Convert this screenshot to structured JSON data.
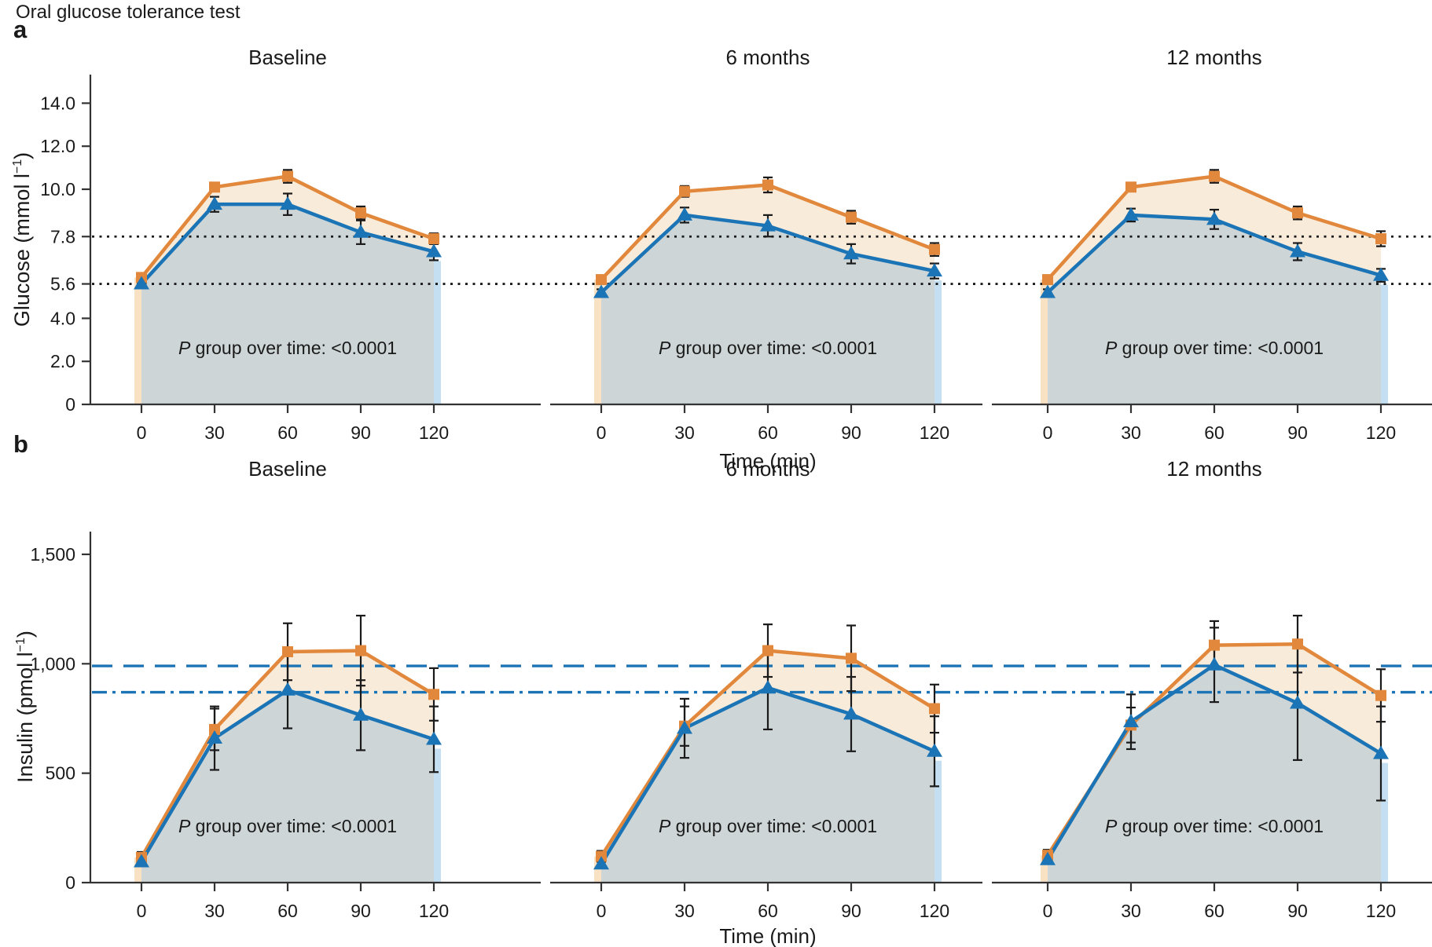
{
  "figure": {
    "title": "Oral glucose tolerance test",
    "row_letters": {
      "a": "a",
      "b": "b"
    },
    "colors": {
      "orange": "#E1883C",
      "blue": "#1B74B5",
      "band": "#F9EBDA",
      "gray": "#CDD5D6",
      "strip_left": "#F9E2C4",
      "strip_right": "#C3DFF1",
      "axis": "#333333",
      "text": "#1A1A1A",
      "ref_black": "#1A1A1A"
    }
  },
  "chart_data": [
    {
      "type": "line",
      "row": "a",
      "ylabel": "Glucose (mmol l−1)",
      "ylabel_parts": {
        "pre": "Glucose (mmol l",
        "sup": "−1",
        "post": ")"
      },
      "xlabel": "Time (min)",
      "x": [
        0,
        30,
        60,
        90,
        120
      ],
      "xtick_labels": [
        "0",
        "30",
        "60",
        "90",
        "120"
      ],
      "ylim": [
        0,
        15.3
      ],
      "yticks": [
        {
          "v": 14,
          "label": "14.0"
        },
        {
          "v": 12,
          "label": "12.0"
        },
        {
          "v": 10,
          "label": "10.0"
        },
        {
          "v": 7.8,
          "label": "7.8"
        },
        {
          "v": 5.6,
          "label": "5.6"
        },
        {
          "v": 4,
          "label": "4.0"
        },
        {
          "v": 2,
          "label": "2.0"
        },
        {
          "v": 0,
          "label": "0"
        }
      ],
      "reference_lines": [
        {
          "value": 7.8,
          "style": "dotted",
          "color": "#1A1A1A"
        },
        {
          "value": 5.6,
          "style": "dotted",
          "color": "#1A1A1A"
        }
      ],
      "legend": "none",
      "panels": [
        {
          "title": "Baseline",
          "annotation": "P group over time: <0.0001",
          "series": [
            {
              "name": "orange-squares",
              "marker": "square",
              "values": [
                5.9,
                10.1,
                10.6,
                8.9,
                7.7
              ],
              "errors": [
                0.15,
                0.2,
                0.3,
                0.3,
                0.25
              ]
            },
            {
              "name": "blue-triangles",
              "marker": "triangle",
              "values": [
                5.6,
                9.3,
                9.3,
                8.0,
                7.1
              ],
              "errors": [
                0.1,
                0.35,
                0.5,
                0.55,
                0.4
              ]
            }
          ]
        },
        {
          "title": "6 months",
          "annotation": "P group over time: <0.0001",
          "series": [
            {
              "name": "orange-squares",
              "marker": "square",
              "values": [
                5.8,
                9.9,
                10.2,
                8.7,
                7.2
              ],
              "errors": [
                0.15,
                0.25,
                0.35,
                0.3,
                0.3
              ]
            },
            {
              "name": "blue-triangles",
              "marker": "triangle",
              "values": [
                5.2,
                8.8,
                8.3,
                7.0,
                6.2
              ],
              "errors": [
                0.15,
                0.35,
                0.5,
                0.45,
                0.35
              ]
            }
          ]
        },
        {
          "title": "12 months",
          "annotation": "P group over time: <0.0001",
          "series": [
            {
              "name": "orange-squares",
              "marker": "square",
              "values": [
                5.8,
                10.1,
                10.6,
                8.9,
                7.7
              ],
              "errors": [
                0.15,
                0.2,
                0.3,
                0.3,
                0.35
              ]
            },
            {
              "name": "blue-triangles",
              "marker": "triangle",
              "values": [
                5.2,
                8.8,
                8.6,
                7.1,
                6.0
              ],
              "errors": [
                0.15,
                0.3,
                0.45,
                0.4,
                0.3
              ]
            }
          ]
        }
      ]
    },
    {
      "type": "line",
      "row": "b",
      "ylabel": "Insulin (pmol l−1)",
      "ylabel_parts": {
        "pre": "Insulin (pmol l",
        "sup": "−1",
        "post": ")"
      },
      "xlabel": "Time (min)",
      "x": [
        0,
        30,
        60,
        90,
        120
      ],
      "xtick_labels": [
        "0",
        "30",
        "60",
        "90",
        "120"
      ],
      "ylim": [
        0,
        1600
      ],
      "yticks": [
        {
          "v": 1500,
          "label": "1,500"
        },
        {
          "v": 1000,
          "label": "1,000"
        },
        {
          "v": 500,
          "label": "500"
        },
        {
          "v": 0,
          "label": "0"
        }
      ],
      "reference_lines": [
        {
          "value": 990,
          "style": "dashed",
          "color": "#1B74B5"
        },
        {
          "value": 870,
          "style": "dashdot",
          "color": "#1B74B5"
        }
      ],
      "legend": "none",
      "panels": [
        {
          "title": "Baseline",
          "annotation": "P group over time: <0.0001",
          "series": [
            {
              "name": "orange-squares",
              "marker": "square",
              "values": [
                115,
                700,
                1055,
                1060,
                860
              ],
              "errors": [
                25,
                95,
                130,
                160,
                120
              ]
            },
            {
              "name": "blue-triangles",
              "marker": "triangle",
              "values": [
                95,
                660,
                880,
                765,
                655
              ],
              "errors": [
                20,
                145,
                175,
                160,
                150
              ]
            }
          ]
        },
        {
          "title": "6 months",
          "annotation": "P group over time: <0.0001",
          "series": [
            {
              "name": "orange-squares",
              "marker": "square",
              "values": [
                120,
                715,
                1060,
                1025,
                795
              ],
              "errors": [
                25,
                90,
                120,
                150,
                110
              ]
            },
            {
              "name": "blue-triangles",
              "marker": "triangle",
              "values": [
                85,
                705,
                890,
                770,
                600
              ],
              "errors": [
                20,
                135,
                190,
                170,
                160
              ]
            }
          ]
        },
        {
          "title": "12 months",
          "annotation": "P group over time: <0.0001",
          "series": [
            {
              "name": "orange-squares",
              "marker": "square",
              "values": [
                125,
                720,
                1085,
                1090,
                855
              ],
              "errors": [
                25,
                80,
                110,
                130,
                120
              ]
            },
            {
              "name": "blue-triangles",
              "marker": "triangle",
              "values": [
                105,
                735,
                995,
                820,
                590
              ],
              "errors": [
                20,
                125,
                170,
                260,
                215
              ]
            }
          ]
        }
      ]
    }
  ]
}
